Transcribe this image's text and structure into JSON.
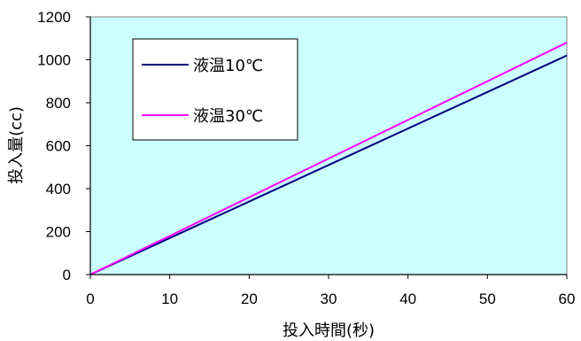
{
  "chart_data": {
    "type": "line",
    "title": "",
    "xlabel": "投入時間(秒)",
    "ylabel": "投入量(cc)",
    "xlim": [
      0,
      60
    ],
    "ylim": [
      0,
      1200
    ],
    "xticks": [
      0,
      10,
      20,
      30,
      40,
      50,
      60
    ],
    "yticks": [
      0,
      200,
      400,
      600,
      800,
      1000,
      1200
    ],
    "grid": false,
    "legend_position": "top-left",
    "plot_background": "#ccffff",
    "series": [
      {
        "name": "液温10℃",
        "color": "#000080",
        "x": [
          0,
          60
        ],
        "y": [
          0,
          1020
        ]
      },
      {
        "name": "液温30℃",
        "color": "#ff00ff",
        "x": [
          0,
          60
        ],
        "y": [
          0,
          1080
        ]
      }
    ]
  }
}
